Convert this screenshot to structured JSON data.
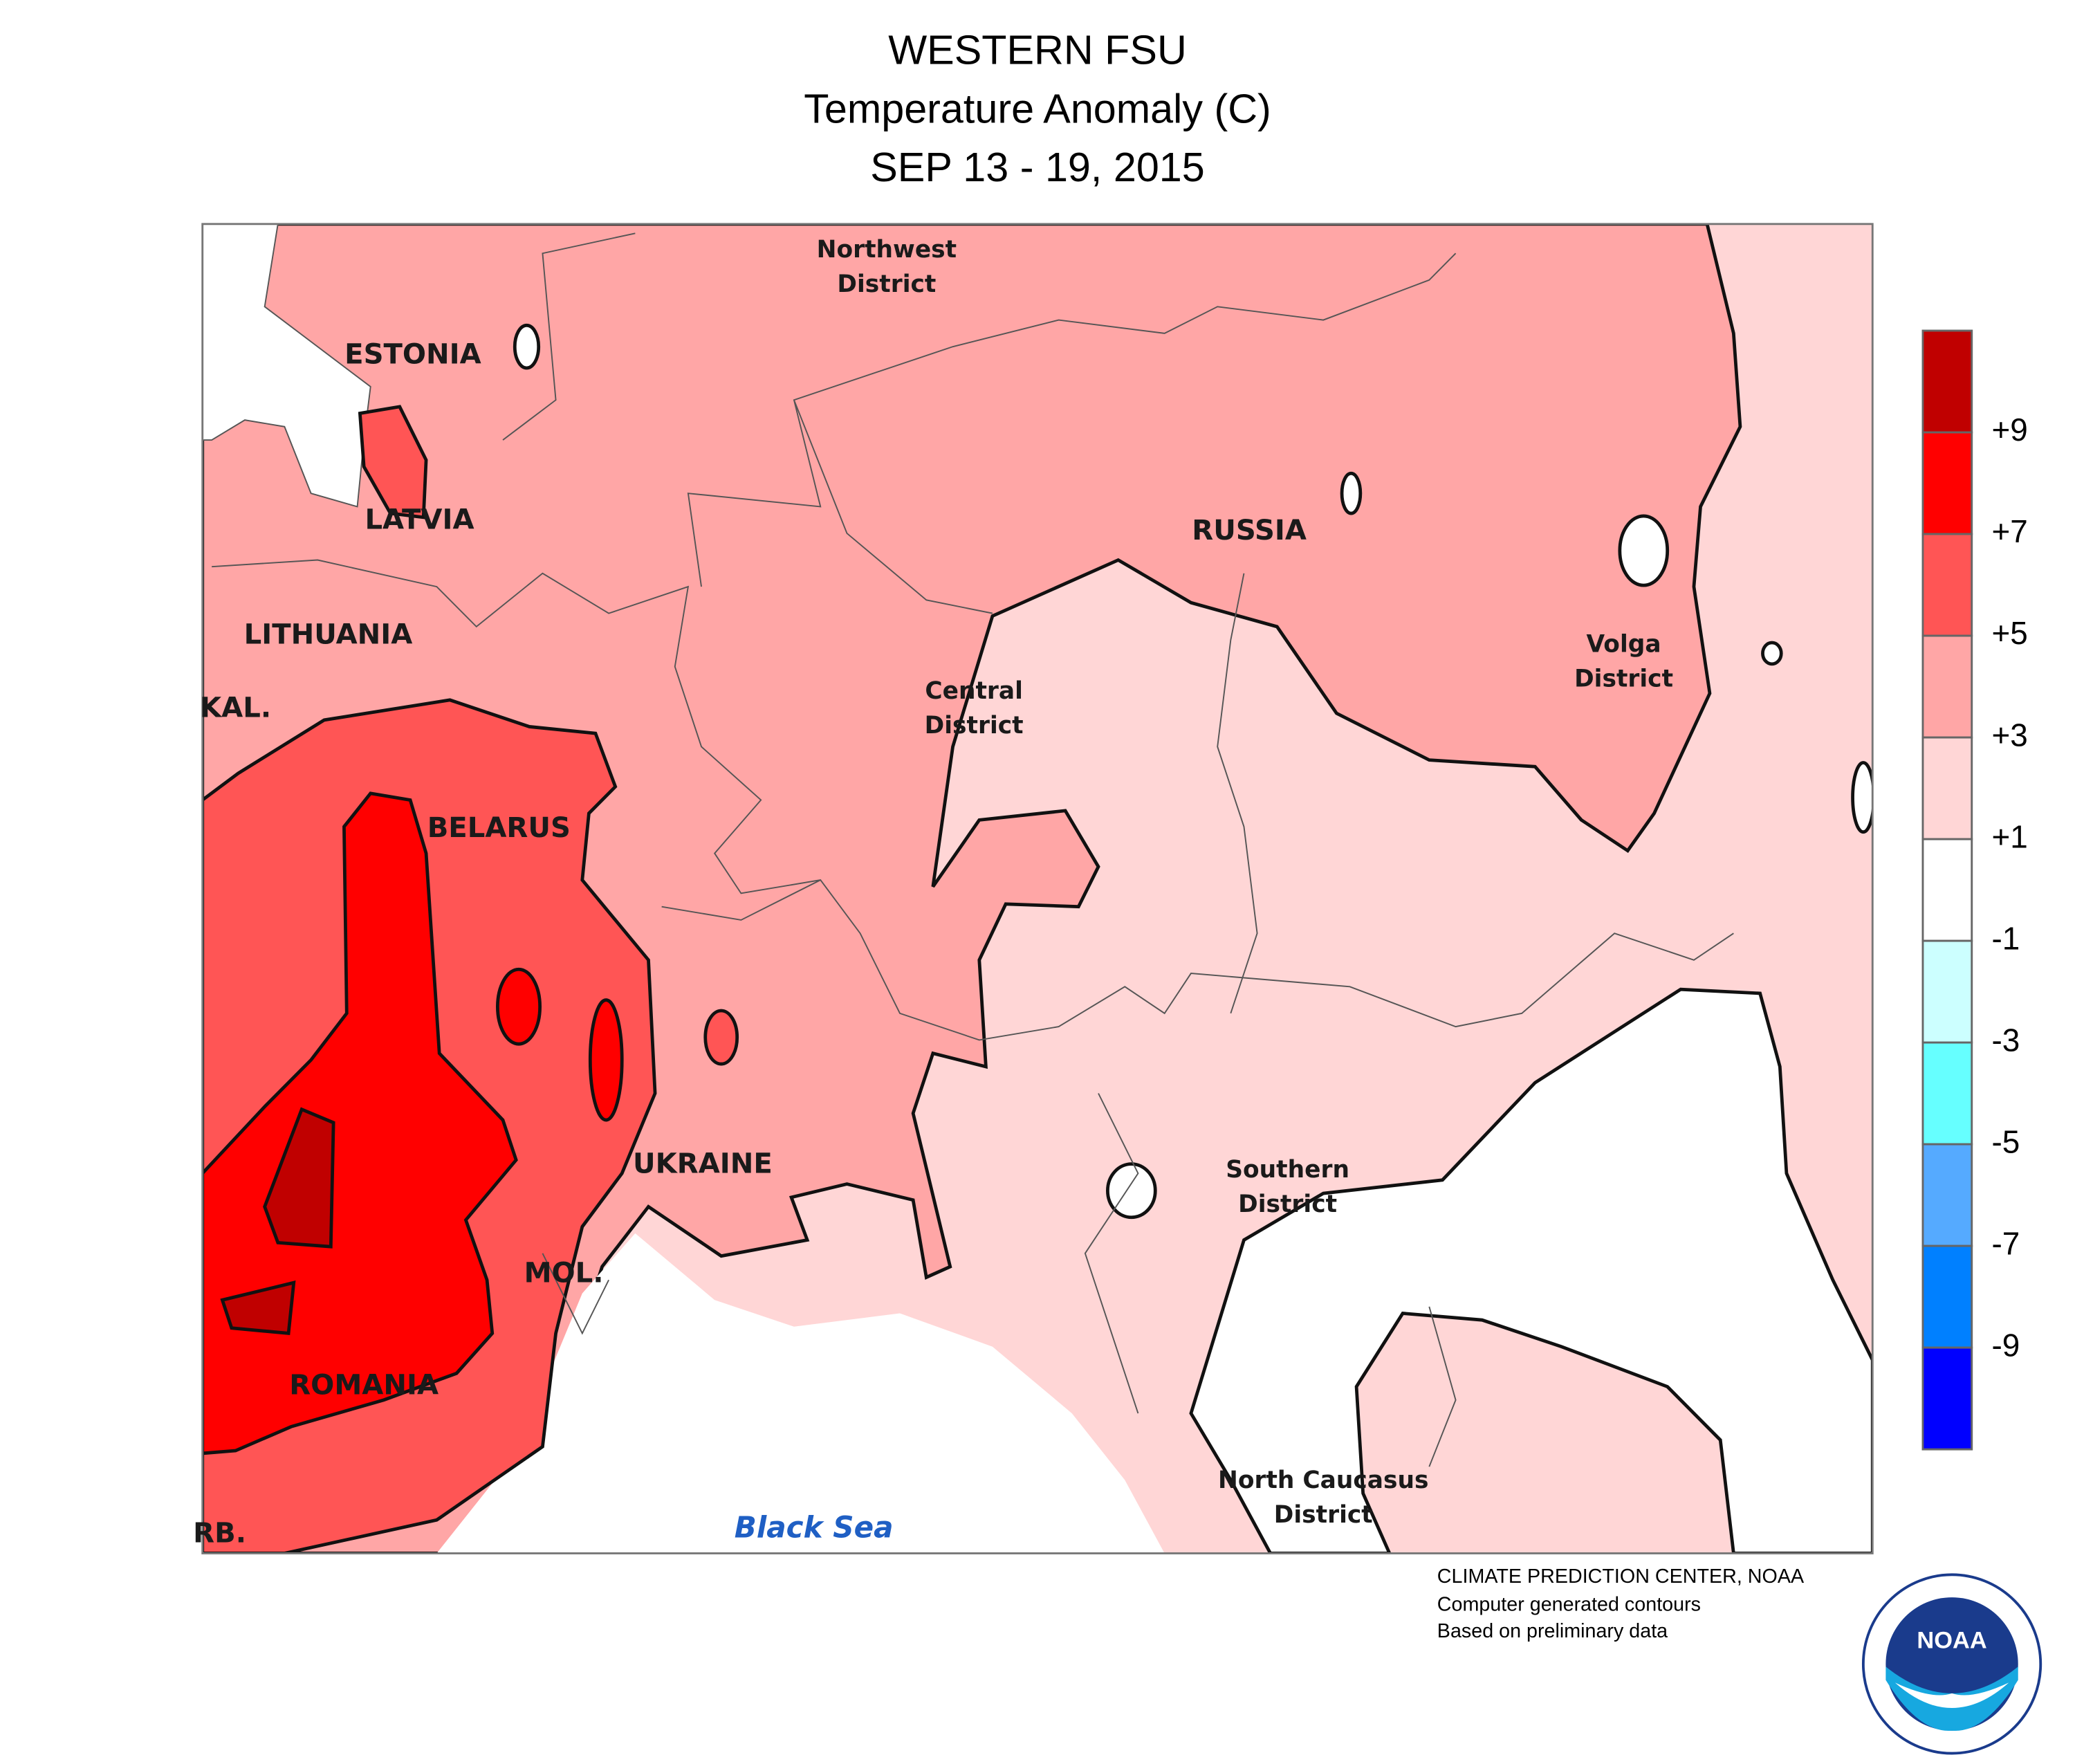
{
  "header": {
    "title": "WESTERN FSU",
    "subtitle": "Temperature Anomaly (C)",
    "date": "SEP 13 - 19, 2015"
  },
  "map": {
    "labels": {
      "northwest": [
        "Northwest",
        "District"
      ],
      "estonia": "ESTONIA",
      "latvia": "LATVIA",
      "lithuania": "LITHUANIA",
      "kaliningrad": "KAL.",
      "belarus": "BELARUS",
      "ukraine": "UKRAINE",
      "moldova": "MOL.",
      "romania": "ROMANIA",
      "serbia": "RB.",
      "russia": "RUSSIA",
      "central": [
        "Central",
        "District"
      ],
      "volga": [
        "Volga",
        "District"
      ],
      "southern": [
        "Southern",
        "District"
      ],
      "north_caucasus": [
        "North Caucasus",
        "District"
      ],
      "black_sea": "Black Sea"
    }
  },
  "legend": {
    "colors": [
      "#c00000",
      "#ff0000",
      "#ff5555",
      "#ffa6a6",
      "#ffd6d6",
      "#ffffff",
      "#ccffff",
      "#66ffff",
      "#55aaff",
      "#0080ff",
      "#0000ff"
    ],
    "labels": [
      "+9",
      "+7",
      "+5",
      "+3",
      "+1",
      "-1",
      "-3",
      "-5",
      "-7",
      "-9"
    ]
  },
  "credits": [
    "CLIMATE PREDICTION CENTER, NOAA",
    "Computer generated contours",
    "Based on preliminary data"
  ],
  "logo": {
    "text": "NOAA"
  }
}
